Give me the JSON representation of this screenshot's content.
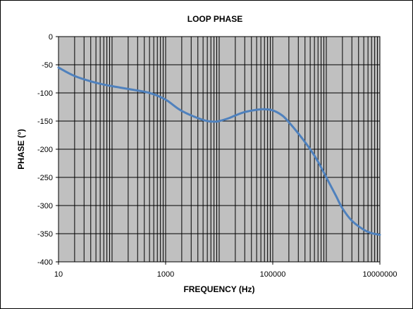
{
  "chart_data": {
    "type": "line",
    "title": "LOOP PHASE",
    "xlabel": "FREQUENCY (Hz)",
    "ylabel": "PHASE (°)",
    "x_scale": "log",
    "xlim": [
      10,
      10000000
    ],
    "ylim": [
      -400,
      0
    ],
    "x_ticks": [
      "10",
      "1000",
      "100000",
      "10000000"
    ],
    "x_tick_values": [
      10,
      1000,
      100000,
      10000000
    ],
    "y_ticks": [
      "0",
      "-50",
      "-100",
      "-150",
      "-200",
      "-250",
      "-300",
      "-350",
      "-400"
    ],
    "y_tick_values": [
      0,
      -50,
      -100,
      -150,
      -200,
      -250,
      -300,
      -350,
      -400
    ],
    "grid": true,
    "plot_background": "#c0c0c0",
    "series": [
      {
        "color": "#4f81bd",
        "x": [
          10,
          20,
          50,
          100,
          200,
          500,
          1000,
          2000,
          5000,
          8000,
          10000,
          15000,
          20000,
          30000,
          50000,
          70000,
          100000,
          150000,
          200000,
          300000,
          500000,
          700000,
          1000000,
          1500000,
          2000000,
          3000000,
          5000000,
          7000000,
          10000000
        ],
        "y": [
          -55,
          -70,
          -82,
          -88,
          -93,
          -100,
          -112,
          -132,
          -148,
          -151,
          -150,
          -145,
          -140,
          -134,
          -130,
          -129,
          -131,
          -140,
          -152,
          -172,
          -200,
          -222,
          -250,
          -282,
          -305,
          -327,
          -343,
          -349,
          -352
        ]
      }
    ]
  }
}
